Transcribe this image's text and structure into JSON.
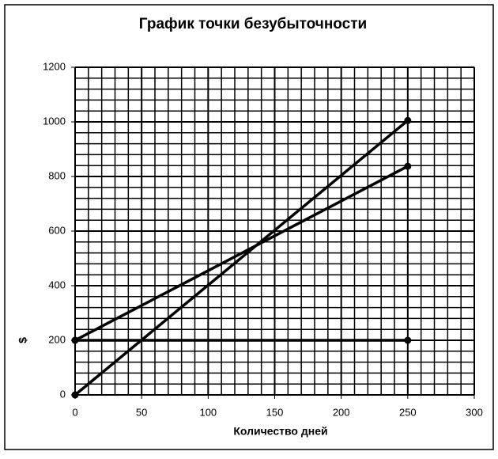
{
  "chart_data": {
    "type": "line",
    "title": "График точки безубыточности",
    "x_label": "Количество дней",
    "y_label": "$",
    "series": [
      {
        "x": [
          0,
          250
        ],
        "values": [
          200,
          200
        ],
        "color": "#000000"
      },
      {
        "x": [
          0,
          250
        ],
        "values": [
          200,
          837.5
        ],
        "color": "#000000"
      },
      {
        "x": [
          0,
          250
        ],
        "values": [
          0,
          1005
        ],
        "color": "#000000"
      }
    ],
    "xlim": [
      0,
      300
    ],
    "xticks": [
      0,
      50,
      100,
      150,
      200,
      250,
      300
    ],
    "ylim": [
      0,
      1200
    ],
    "yticks": [
      0,
      200,
      400,
      600,
      800,
      1000,
      1200
    ],
    "grid": true
  }
}
